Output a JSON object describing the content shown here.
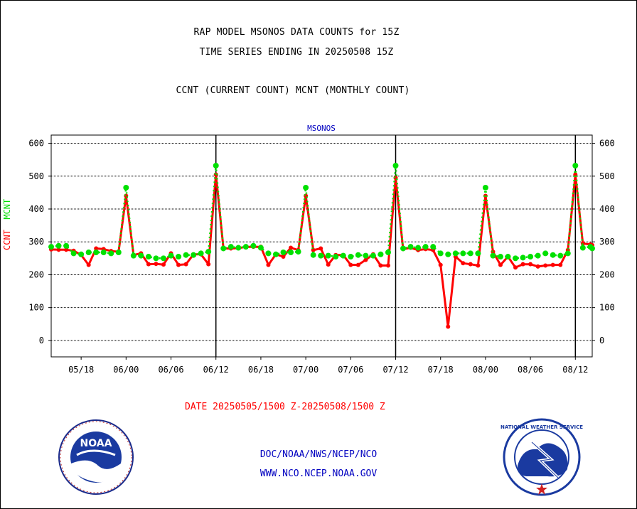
{
  "header": {
    "line1": "RAP MODEL MSONOS DATA COUNTS for 15Z",
    "line2": "TIME SERIES ENDING IN 20250508 15Z",
    "line3": "CCNT (CURRENT COUNT) MCNT (MONTHLY COUNT)"
  },
  "y_axis_label": {
    "current": "CCNT",
    "monthly": "MCNT"
  },
  "date_range": "DATE 20250505/1500 Z-20250508/1500 Z",
  "footer": {
    "agency": "DOC/NOAA/NWS/NCEP/NCO",
    "url": "WWW.NCO.NCEP.NOAA.GOV"
  },
  "logos": {
    "left": "NOAA",
    "right": "NATIONAL WEATHER SERVICE"
  },
  "colors": {
    "ccnt": "#ff0000",
    "mcnt": "#00e000",
    "panel_title": "#0000c0"
  },
  "chart_data": {
    "type": "line",
    "title": "MSONOS",
    "ylim": [
      -50,
      625
    ],
    "y_ticks": [
      0,
      100,
      200,
      300,
      400,
      500,
      600
    ],
    "x_tick_labels": [
      "05/18",
      "06/00",
      "06/06",
      "06/12",
      "06/18",
      "07/00",
      "07/06",
      "07/12",
      "07/18",
      "08/00",
      "08/06",
      "08/12"
    ],
    "x_ticks_hours": [
      18,
      24,
      30,
      36,
      42,
      48,
      54,
      60,
      66,
      72,
      78,
      84
    ],
    "xlim_hours": [
      14,
      86.25
    ],
    "day_boundaries_hours": [
      36,
      60,
      84
    ],
    "grid": true,
    "series": [
      {
        "name": "CCNT",
        "x": [
          14,
          15,
          16,
          17,
          18,
          19,
          20,
          21,
          22,
          23,
          24,
          25,
          26,
          27,
          28,
          29,
          30,
          31,
          32,
          33,
          34,
          35,
          36,
          37,
          38,
          39,
          40,
          41,
          42,
          43,
          44,
          45,
          46,
          47,
          48,
          49,
          50,
          51,
          52,
          53,
          54,
          55,
          56,
          57,
          58,
          59,
          60,
          61,
          62,
          63,
          64,
          65,
          66,
          67,
          68,
          69,
          70,
          71,
          72,
          73,
          74,
          75,
          76,
          77,
          78,
          79,
          80,
          81,
          82,
          83,
          84,
          85,
          86,
          86.25
        ],
        "values": [
          277,
          276,
          276,
          273,
          260,
          230,
          280,
          278,
          272,
          270,
          440,
          260,
          265,
          232,
          233,
          231,
          265,
          230,
          232,
          262,
          262,
          232,
          505,
          280,
          280,
          281,
          285,
          285,
          285,
          230,
          262,
          255,
          282,
          275,
          440,
          275,
          280,
          231,
          260,
          260,
          230,
          230,
          245,
          262,
          228,
          228,
          495,
          278,
          282,
          275,
          278,
          275,
          230,
          42,
          255,
          235,
          232,
          228,
          440,
          270,
          230,
          255,
          222,
          232,
          232,
          225,
          228,
          230,
          230,
          275,
          505,
          295,
          292,
          290
        ]
      },
      {
        "name": "MCNT",
        "x": [
          14,
          15,
          16,
          17,
          18,
          19,
          20,
          21,
          22,
          23,
          24,
          25,
          26,
          27,
          28,
          29,
          30,
          31,
          32,
          33,
          34,
          35,
          36,
          37,
          38,
          39,
          40,
          41,
          42,
          43,
          44,
          45,
          46,
          47,
          48,
          49,
          50,
          51,
          52,
          53,
          54,
          55,
          56,
          57,
          58,
          59,
          60,
          61,
          62,
          63,
          64,
          65,
          66,
          67,
          68,
          69,
          70,
          71,
          72,
          73,
          74,
          75,
          76,
          77,
          78,
          79,
          80,
          81,
          82,
          83,
          84,
          85,
          86,
          86.25
        ],
        "values": [
          285,
          288,
          288,
          265,
          262,
          268,
          268,
          268,
          265,
          268,
          465,
          258,
          258,
          255,
          250,
          250,
          258,
          255,
          260,
          260,
          265,
          270,
          532,
          280,
          285,
          282,
          285,
          288,
          282,
          265,
          262,
          268,
          268,
          270,
          465,
          260,
          258,
          258,
          255,
          258,
          255,
          260,
          258,
          258,
          262,
          268,
          532,
          280,
          285,
          282,
          285,
          285,
          265,
          262,
          265,
          265,
          265,
          265,
          465,
          258,
          255,
          255,
          250,
          252,
          255,
          258,
          265,
          260,
          258,
          265,
          532,
          282,
          285,
          280
        ]
      }
    ]
  }
}
